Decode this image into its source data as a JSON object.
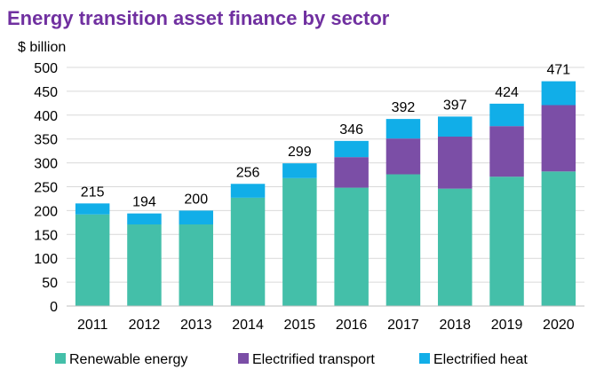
{
  "chart_data": {
    "type": "bar",
    "stacked": true,
    "title": "Energy transition asset finance by sector",
    "ylabel": "$ billion",
    "xlabel": "",
    "ylim": [
      0,
      500
    ],
    "yticks": [
      0,
      50,
      100,
      150,
      200,
      250,
      300,
      350,
      400,
      450,
      500
    ],
    "grid": true,
    "legend": "bottom",
    "categories": [
      "2011",
      "2012",
      "2013",
      "2014",
      "2015",
      "2016",
      "2017",
      "2018",
      "2019",
      "2020"
    ],
    "series": [
      {
        "name": "Renewable energy",
        "color": "#44bfa9",
        "values": [
          192,
          171,
          171,
          227,
          268,
          248,
          276,
          246,
          271,
          282
        ]
      },
      {
        "name": "Electrified transport",
        "color": "#7b4ea6",
        "values": [
          0,
          0,
          0,
          0,
          0,
          64,
          75,
          109,
          106,
          139
        ]
      },
      {
        "name": "Electrified heat",
        "color": "#11aee8",
        "values": [
          23,
          23,
          29,
          29,
          31,
          34,
          41,
          42,
          47,
          50
        ]
      }
    ],
    "totals": [
      215,
      194,
      200,
      256,
      299,
      346,
      392,
      397,
      424,
      471
    ]
  }
}
